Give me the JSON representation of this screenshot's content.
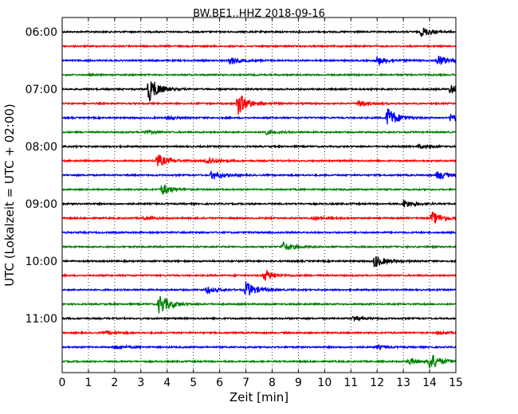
{
  "chart_data": {
    "type": "line",
    "title": "BW.BE1..HHZ 2018-09-16",
    "xlabel": "Zeit  [min]",
    "ylabel": "UTC (Lokalzeit = UTC + 02:00)",
    "xlim": [
      0,
      15
    ],
    "x_ticks": [
      "0",
      "1",
      "2",
      "3",
      "4",
      "5",
      "6",
      "7",
      "8",
      "9",
      "10",
      "11",
      "12",
      "13",
      "14",
      "15"
    ],
    "y_ticks": [
      "06:00",
      "07:00",
      "08:00",
      "09:00",
      "10:00",
      "11:00"
    ],
    "grid": "vertical dotted",
    "trace_colors": [
      "#000000",
      "#ff0000",
      "#0000ff",
      "#008000"
    ],
    "trace_interval_min": 15,
    "traces": [
      {
        "start": "06:00",
        "events": [
          [
            13.7,
            6
          ]
        ]
      },
      {
        "start": "06:15",
        "events": []
      },
      {
        "start": "06:30",
        "events": [
          [
            6.4,
            5
          ],
          [
            12.0,
            5
          ],
          [
            14.3,
            7
          ]
        ]
      },
      {
        "start": "06:45",
        "events": []
      },
      {
        "start": "07:00",
        "events": [
          [
            3.3,
            16
          ],
          [
            14.8,
            6
          ]
        ]
      },
      {
        "start": "07:15",
        "events": [
          [
            6.7,
            14
          ],
          [
            11.3,
            4
          ]
        ]
      },
      {
        "start": "07:30",
        "events": [
          [
            4.0,
            2
          ],
          [
            12.4,
            13
          ],
          [
            14.8,
            5
          ]
        ]
      },
      {
        "start": "07:45",
        "events": [
          [
            3.1,
            2
          ],
          [
            7.7,
            3
          ]
        ]
      },
      {
        "start": "08:00",
        "events": [
          [
            13.6,
            2
          ]
        ]
      },
      {
        "start": "08:15",
        "events": [
          [
            3.6,
            9
          ],
          [
            5.5,
            5
          ]
        ]
      },
      {
        "start": "08:30",
        "events": [
          [
            5.7,
            6
          ],
          [
            14.3,
            6
          ]
        ]
      },
      {
        "start": "08:45",
        "events": [
          [
            3.8,
            7
          ]
        ]
      },
      {
        "start": "09:00",
        "events": [
          [
            13.0,
            5
          ]
        ]
      },
      {
        "start": "09:15",
        "events": [
          [
            3.1,
            2
          ],
          [
            9.6,
            2
          ],
          [
            14.1,
            8
          ]
        ]
      },
      {
        "start": "09:30",
        "events": []
      },
      {
        "start": "09:45",
        "events": [
          [
            8.4,
            6
          ]
        ]
      },
      {
        "start": "10:00",
        "events": [
          [
            11.9,
            8
          ]
        ]
      },
      {
        "start": "10:15",
        "events": [
          [
            7.7,
            7
          ]
        ]
      },
      {
        "start": "10:30",
        "events": [
          [
            5.5,
            4
          ],
          [
            7.0,
            10
          ]
        ]
      },
      {
        "start": "10:45",
        "events": [
          [
            3.7,
            13
          ]
        ]
      },
      {
        "start": "11:00",
        "events": [
          [
            11.1,
            3
          ]
        ]
      },
      {
        "start": "11:15",
        "events": [
          [
            1.7,
            2
          ],
          [
            14.3,
            2
          ]
        ]
      },
      {
        "start": "11:30",
        "events": [
          [
            2.0,
            2
          ],
          [
            12.0,
            2
          ]
        ]
      },
      {
        "start": "11:45",
        "events": [
          [
            13.2,
            4
          ],
          [
            14.0,
            11
          ]
        ]
      }
    ]
  }
}
